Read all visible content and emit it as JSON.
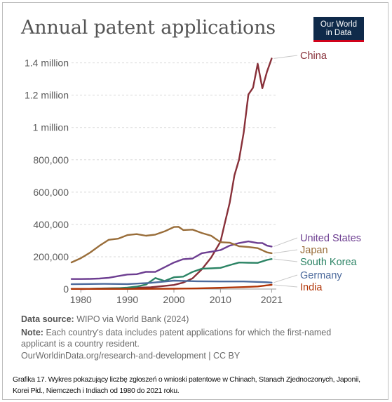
{
  "title": "Annual patent applications",
  "logo": {
    "line1": "Our World",
    "line2": "in Data"
  },
  "source_label": "Data source:",
  "source_text": "WIPO via World Bank (2024)",
  "note_label": "Note:",
  "note_line1": "Each country's data includes patent applications for which the first-named",
  "note_line2": "applicant is a country resident.",
  "url": "OurWorldinData.org/research-and-development | CC BY",
  "caption_line1": "Grafika 17. Wykres pokazujący liczbę zgłoszeń o wnioski patentowe w Chinach, Stanach Zjednoczonych, Japonii,",
  "caption_line2": "Korei Płd., Niemczech i Indiach od 1980 do 2021 roku.",
  "chart_data": {
    "type": "line",
    "title": "Annual patent applications",
    "xlim": [
      1978,
      2022
    ],
    "ylim": [
      0,
      1420000
    ],
    "x_ticks": [
      1980,
      1990,
      2000,
      2010,
      2021
    ],
    "y_ticks": [
      {
        "value": 0,
        "label": "0"
      },
      {
        "value": 200000,
        "label": "200,000"
      },
      {
        "value": 400000,
        "label": "400,000"
      },
      {
        "value": 600000,
        "label": "600,000"
      },
      {
        "value": 800000,
        "label": "800,000"
      },
      {
        "value": 1000000,
        "label": "1 million"
      },
      {
        "value": 1200000,
        "label": "1.2 million"
      },
      {
        "value": 1400000,
        "label": "1.4 million"
      }
    ],
    "grid": "horizontal dashed",
    "legend": "line-end labels",
    "series": [
      {
        "name": "China",
        "color": "#883039",
        "x": [
          1980,
          1985,
          1990,
          1995,
          2000,
          2002,
          2004,
          2006,
          2008,
          2010,
          2011,
          2012,
          2013,
          2014,
          2015,
          2016,
          2017,
          2018,
          2019,
          2020,
          2021
        ],
        "y": [
          0,
          4000,
          6000,
          11000,
          25000,
          40000,
          66000,
          122000,
          195000,
          293000,
          415000,
          535000,
          704000,
          801000,
          968000,
          1204000,
          1246000,
          1394000,
          1243000,
          1345000,
          1427000
        ]
      },
      {
        "name": "United States",
        "color": "#6d3e91",
        "x": [
          1978,
          1980,
          1982,
          1984,
          1986,
          1988,
          1990,
          1992,
          1994,
          1996,
          1998,
          2000,
          2002,
          2004,
          2006,
          2008,
          2010,
          2012,
          2014,
          2016,
          2018,
          2019,
          2020,
          2021
        ],
        "y": [
          62000,
          62000,
          63000,
          65000,
          70000,
          80000,
          90000,
          92000,
          107000,
          106000,
          135000,
          164000,
          185000,
          189000,
          222000,
          231000,
          241000,
          269000,
          285000,
          295000,
          285000,
          285000,
          269000,
          263000
        ]
      },
      {
        "name": "Japan",
        "color": "#996d39",
        "x": [
          1978,
          1980,
          1982,
          1984,
          1986,
          1988,
          1990,
          1992,
          1994,
          1996,
          1998,
          2000,
          2001,
          2002,
          2004,
          2006,
          2008,
          2010,
          2012,
          2014,
          2016,
          2018,
          2020,
          2021
        ],
        "y": [
          165000,
          191000,
          226000,
          268000,
          305000,
          312000,
          334000,
          340000,
          330000,
          337000,
          357000,
          384000,
          385000,
          365000,
          368000,
          347000,
          330000,
          290000,
          287000,
          265000,
          260000,
          253000,
          227000,
          222000
        ]
      },
      {
        "name": "South Korea",
        "color": "#2c8465",
        "x": [
          1978,
          1980,
          1984,
          1988,
          1990,
          1992,
          1994,
          1996,
          1998,
          2000,
          2002,
          2004,
          2006,
          2008,
          2010,
          2012,
          2014,
          2016,
          2018,
          2020,
          2021
        ],
        "y": [
          1000,
          1000,
          2000,
          5000,
          9000,
          15000,
          28000,
          68000,
          50000,
          73000,
          77000,
          106000,
          126000,
          128000,
          131000,
          148000,
          164000,
          163000,
          162000,
          180000,
          186000
        ]
      },
      {
        "name": "Germany",
        "color": "#4c6a9c",
        "x": [
          1978,
          1980,
          1985,
          1990,
          1995,
          2000,
          2005,
          2010,
          2015,
          2020,
          2021
        ],
        "y": [
          30000,
          31000,
          32000,
          31000,
          38000,
          52000,
          48000,
          47000,
          47000,
          42000,
          40000
        ]
      },
      {
        "name": "India",
        "color": "#b13507",
        "x": [
          1978,
          1980,
          1990,
          2000,
          2005,
          2010,
          2015,
          2018,
          2020,
          2021
        ],
        "y": [
          1000,
          1000,
          1000,
          2000,
          4000,
          8000,
          12000,
          16000,
          23000,
          26000
        ]
      }
    ]
  }
}
